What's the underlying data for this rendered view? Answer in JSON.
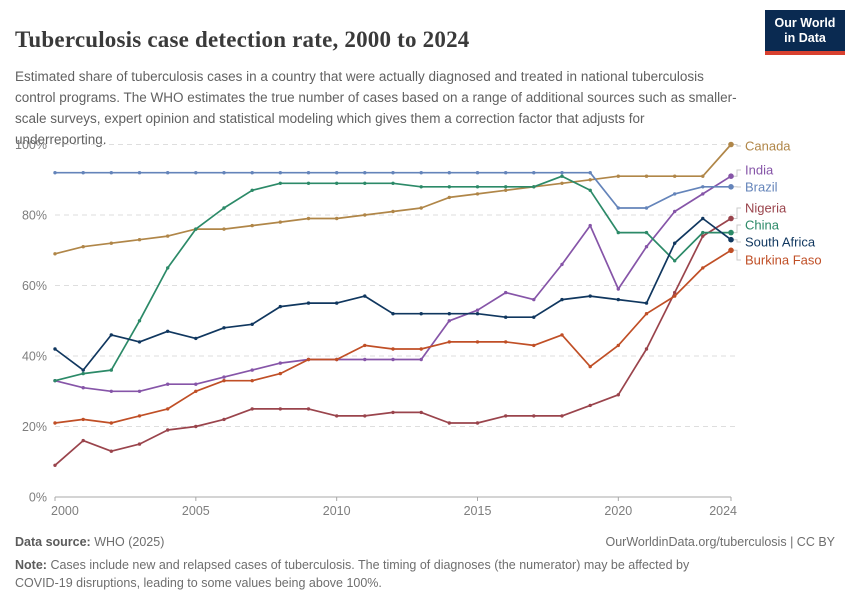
{
  "header": {
    "title": "Tuberculosis case detection rate, 2000 to 2024",
    "logo": {
      "line1": "Our World",
      "line2": "in Data"
    }
  },
  "subtitle": "Estimated share of tuberculosis cases in a country that were actually diagnosed and treated in national tuberculosis control programs. The WHO estimates the true number of cases based on a range of additional sources such as smaller-scale surveys, expert opinion and statistical modeling which gives them a correction factor that adjusts for underreporting.",
  "chart_data": {
    "type": "line",
    "title": "Tuberculosis case detection rate, 2000 to 2024",
    "xlabel": "",
    "ylabel": "",
    "x_range": [
      2000,
      2024
    ],
    "ylim": [
      0,
      100
    ],
    "x_ticks": [
      2000,
      2005,
      2010,
      2015,
      2020,
      2024
    ],
    "y_ticks": [
      0,
      20,
      40,
      60,
      80,
      100
    ],
    "y_tick_suffix": "%",
    "grid": "horizontal-dashed",
    "legend_position": "right-of-lines",
    "x": [
      2000,
      2001,
      2002,
      2003,
      2004,
      2005,
      2006,
      2007,
      2008,
      2009,
      2010,
      2011,
      2012,
      2013,
      2014,
      2015,
      2016,
      2017,
      2018,
      2019,
      2020,
      2021,
      2022,
      2023,
      2024
    ],
    "series": [
      {
        "name": "Canada",
        "color": "#B08648",
        "values": [
          69,
          71,
          72,
          73,
          74,
          76,
          76,
          77,
          78,
          79,
          79,
          80,
          81,
          82,
          85,
          86,
          87,
          88,
          89,
          90,
          91,
          91,
          91,
          91,
          100
        ]
      },
      {
        "name": "India",
        "color": "#8655A8",
        "values": [
          33,
          31,
          30,
          30,
          32,
          32,
          34,
          36,
          38,
          39,
          39,
          39,
          39,
          39,
          50,
          53,
          58,
          56,
          66,
          77,
          59,
          71,
          81,
          86,
          91
        ]
      },
      {
        "name": "Brazil",
        "color": "#6484BA",
        "values": [
          92,
          92,
          92,
          92,
          92,
          92,
          92,
          92,
          92,
          92,
          92,
          92,
          92,
          92,
          92,
          92,
          92,
          92,
          92,
          92,
          82,
          82,
          86,
          88,
          88
        ]
      },
      {
        "name": "Nigeria",
        "color": "#9A444C",
        "values": [
          9,
          16,
          13,
          15,
          19,
          20,
          22,
          25,
          25,
          25,
          23,
          23,
          24,
          24,
          21,
          21,
          23,
          23,
          23,
          26,
          29,
          42,
          58,
          74,
          79
        ]
      },
      {
        "name": "China",
        "color": "#2C8A68",
        "values": [
          33,
          35,
          36,
          50,
          65,
          76,
          82,
          87,
          89,
          89,
          89,
          89,
          89,
          88,
          88,
          88,
          88,
          88,
          91,
          87,
          75,
          75,
          67,
          75,
          75
        ]
      },
      {
        "name": "South Africa",
        "color": "#10375F",
        "values": [
          42,
          36,
          46,
          44,
          47,
          45,
          48,
          49,
          54,
          55,
          55,
          57,
          52,
          52,
          52,
          52,
          51,
          51,
          56,
          57,
          56,
          55,
          72,
          79,
          73
        ]
      },
      {
        "name": "Burkina Faso",
        "color": "#C04F26",
        "values": [
          21,
          22,
          21,
          23,
          25,
          30,
          33,
          33,
          35,
          39,
          39,
          43,
          42,
          42,
          44,
          44,
          44,
          43,
          46,
          37,
          43,
          52,
          57,
          65,
          70
        ]
      }
    ]
  },
  "footer": {
    "datasource_label": "Data source:",
    "datasource_value": "WHO (2025)",
    "link": "OurWorldinData.org/tuberculosis",
    "separator": " | ",
    "license": "CC BY",
    "note_label": "Note:",
    "note_text": "Cases include new and relapsed cases of tuberculosis. The timing of diagnoses (the numerator) may be affected by COVID-19 disruptions, leading to some values being above 100%."
  }
}
